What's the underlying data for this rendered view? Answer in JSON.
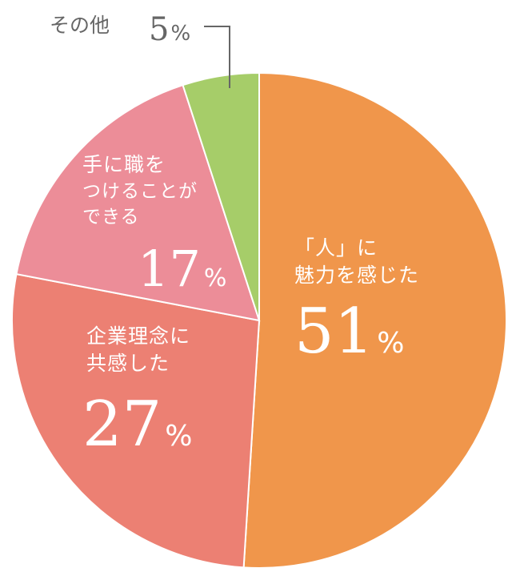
{
  "chart_data": {
    "type": "pie",
    "slices": [
      {
        "label_lines": [
          "「人」に",
          "魅力を感じた"
        ],
        "value": 51,
        "value_text": "51",
        "unit": "%",
        "color": "#f0964b"
      },
      {
        "label_lines": [
          "企業理念に",
          "共感した"
        ],
        "value": 27,
        "value_text": "27",
        "unit": "%",
        "color": "#ec8073"
      },
      {
        "label_lines": [
          "手に職を",
          "つけることが",
          "できる"
        ],
        "value": 17,
        "value_text": "17",
        "unit": "%",
        "color": "#ec8d98"
      },
      {
        "label_lines": [
          "その他"
        ],
        "value": 5,
        "value_text": "5",
        "unit": "%",
        "color": "#a6cd69"
      }
    ]
  }
}
